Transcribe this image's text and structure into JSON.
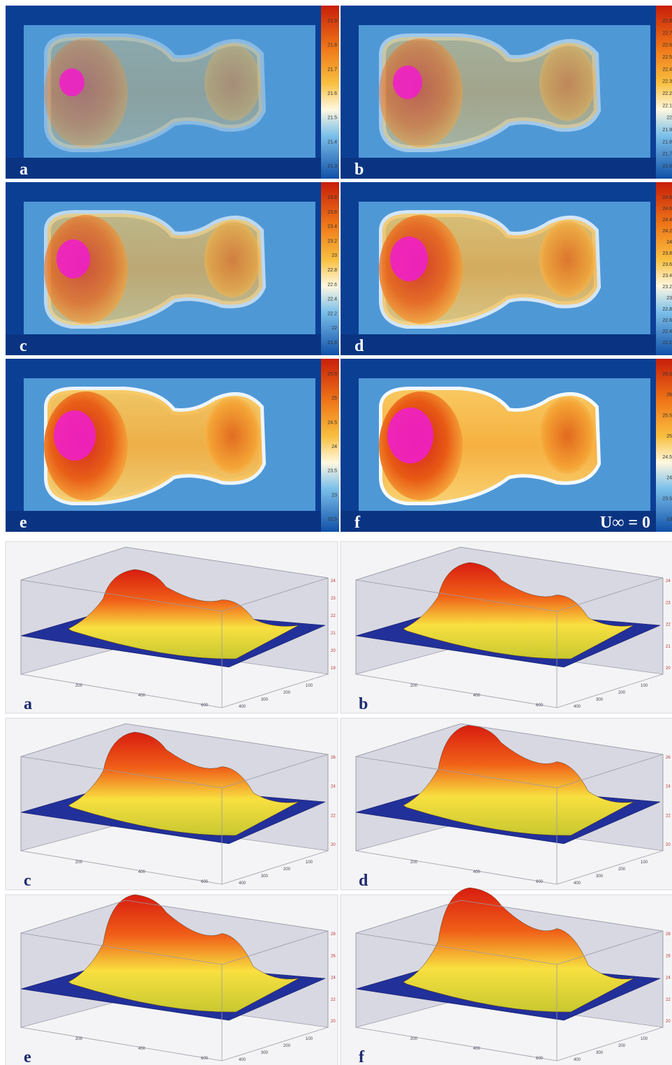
{
  "thermal_panels": [
    {
      "label": "a",
      "colorbar_ticks": [
        21.9,
        21.8,
        21.7,
        21.6,
        21.5,
        21.4,
        21.3
      ]
    },
    {
      "label": "b",
      "colorbar_ticks": [
        22.8,
        22.7,
        22.6,
        22.5,
        22.4,
        22.3,
        22.2,
        22.1,
        22,
        21.9,
        21.8,
        21.7,
        21.6
      ]
    },
    {
      "label": "c",
      "colorbar_ticks": [
        23.8,
        23.6,
        23.4,
        23.2,
        23,
        22.8,
        22.6,
        22.4,
        22.2,
        22,
        21.8
      ]
    },
    {
      "label": "d",
      "colorbar_ticks": [
        24.8,
        24.6,
        24.4,
        24.2,
        24,
        23.8,
        23.6,
        23.4,
        23.2,
        23,
        22.8,
        22.6,
        22.4,
        22.2
      ]
    },
    {
      "label": "e",
      "colorbar_ticks": [
        25.5,
        25,
        24.5,
        24,
        23.5,
        23,
        22.5
      ]
    },
    {
      "label": "f",
      "colorbar_ticks": [
        26.5,
        26,
        25.5,
        25,
        24.5,
        24,
        23.5,
        23
      ]
    }
  ],
  "annotation": "U∞ = 0",
  "surface_panels": [
    {
      "label": "a",
      "z_ticks": [
        24,
        23,
        22,
        21,
        20,
        19
      ],
      "x_ticks": [
        200,
        400,
        600
      ],
      "y_ticks": [
        100,
        200,
        300,
        400
      ]
    },
    {
      "label": "b",
      "z_ticks": [
        24,
        23,
        22,
        21,
        20
      ],
      "x_ticks": [
        200,
        400,
        600
      ],
      "y_ticks": [
        100,
        200,
        300,
        400
      ]
    },
    {
      "label": "c",
      "z_ticks": [
        26,
        24,
        22,
        20
      ],
      "x_ticks": [
        200,
        400,
        600
      ],
      "y_ticks": [
        100,
        200,
        300,
        400
      ]
    },
    {
      "label": "d",
      "z_ticks": [
        26,
        24,
        22,
        20
      ],
      "x_ticks": [
        200,
        400,
        600
      ],
      "y_ticks": [
        100,
        200,
        300,
        400
      ]
    },
    {
      "label": "e",
      "z_ticks": [
        28,
        26,
        24,
        22,
        20
      ],
      "x_ticks": [
        200,
        400,
        600
      ],
      "y_ticks": [
        100,
        200,
        300,
        400
      ]
    },
    {
      "label": "f",
      "z_ticks": [
        28,
        26,
        24,
        22,
        20
      ],
      "x_ticks": [
        200,
        400,
        600
      ],
      "y_ticks": [
        100,
        200,
        300,
        400
      ]
    }
  ]
}
